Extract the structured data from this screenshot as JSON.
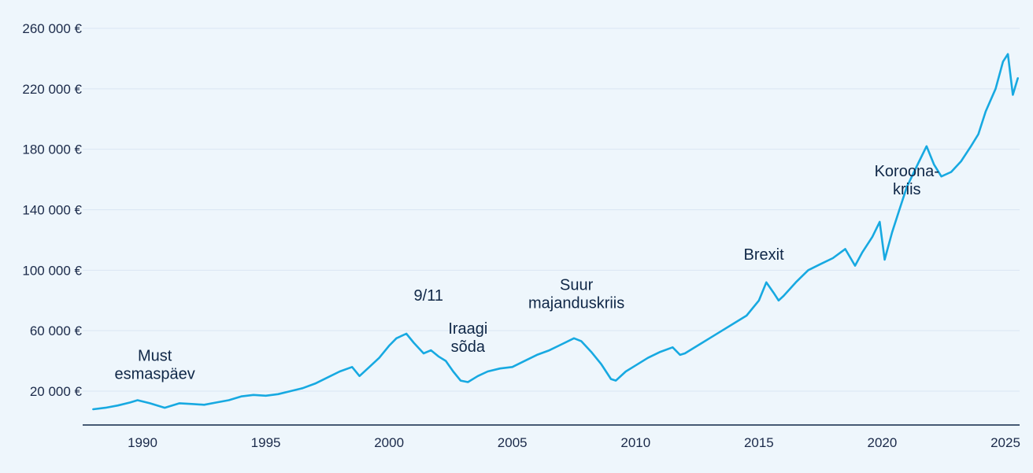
{
  "chart_data": {
    "type": "line",
    "title": "",
    "xlabel": "",
    "ylabel": "",
    "xlim": [
      1988.0,
      2025.75
    ],
    "ylim": [
      0,
      260000
    ],
    "y_ticks": [
      20000,
      60000,
      100000,
      140000,
      180000,
      220000,
      260000
    ],
    "y_tick_labels": [
      "20 000 €",
      "60 000 €",
      "100 000 €",
      "140 000 €",
      "180 000 €",
      "220 000 €",
      "260 000 €"
    ],
    "x_ticks": [
      1990,
      1995,
      2000,
      2005,
      2010,
      2015,
      2020,
      2025
    ],
    "x_tick_labels": [
      "1990",
      "1995",
      "2000",
      "2005",
      "2010",
      "2015",
      "2020",
      "2025"
    ],
    "grid": true,
    "legend": "none",
    "colors": {
      "line": "#17a9e1",
      "text": "#0f2747",
      "background": "#eef6fc",
      "grid": "#d9e6f3"
    },
    "series": [
      {
        "points": [
          [
            1988.0,
            8000
          ],
          [
            1988.5,
            9000
          ],
          [
            1989.0,
            10500
          ],
          [
            1989.5,
            12500
          ],
          [
            1989.8,
            14000
          ],
          [
            1990.3,
            12000
          ],
          [
            1990.6,
            10500
          ],
          [
            1990.9,
            9000
          ],
          [
            1991.2,
            10500
          ],
          [
            1991.5,
            12000
          ],
          [
            1992.0,
            11500
          ],
          [
            1992.5,
            11000
          ],
          [
            1993.0,
            12500
          ],
          [
            1993.5,
            14000
          ],
          [
            1994.0,
            16500
          ],
          [
            1994.5,
            17500
          ],
          [
            1995.0,
            17000
          ],
          [
            1995.5,
            18000
          ],
          [
            1996.0,
            20000
          ],
          [
            1996.5,
            22000
          ],
          [
            1997.0,
            25000
          ],
          [
            1997.5,
            29000
          ],
          [
            1998.0,
            33000
          ],
          [
            1998.5,
            36000
          ],
          [
            1998.8,
            30000
          ],
          [
            1999.2,
            36000
          ],
          [
            1999.6,
            42000
          ],
          [
            2000.0,
            50000
          ],
          [
            2000.3,
            55000
          ],
          [
            2000.7,
            58000
          ],
          [
            2001.0,
            52000
          ],
          [
            2001.4,
            45000
          ],
          [
            2001.7,
            47000
          ],
          [
            2002.0,
            43000
          ],
          [
            2002.3,
            40000
          ],
          [
            2002.6,
            33000
          ],
          [
            2002.9,
            27000
          ],
          [
            2003.2,
            26000
          ],
          [
            2003.6,
            30000
          ],
          [
            2004.0,
            33000
          ],
          [
            2004.5,
            35000
          ],
          [
            2005.0,
            36000
          ],
          [
            2005.5,
            40000
          ],
          [
            2006.0,
            44000
          ],
          [
            2006.5,
            47000
          ],
          [
            2007.0,
            51000
          ],
          [
            2007.5,
            55000
          ],
          [
            2007.8,
            53000
          ],
          [
            2008.2,
            46000
          ],
          [
            2008.6,
            38000
          ],
          [
            2009.0,
            28000
          ],
          [
            2009.2,
            27000
          ],
          [
            2009.6,
            33000
          ],
          [
            2010.0,
            37000
          ],
          [
            2010.5,
            42000
          ],
          [
            2011.0,
            46000
          ],
          [
            2011.5,
            49000
          ],
          [
            2011.8,
            44000
          ],
          [
            2012.0,
            45000
          ],
          [
            2012.5,
            50000
          ],
          [
            2013.0,
            55000
          ],
          [
            2013.5,
            60000
          ],
          [
            2014.0,
            65000
          ],
          [
            2014.5,
            70000
          ],
          [
            2015.0,
            80000
          ],
          [
            2015.3,
            92000
          ],
          [
            2015.6,
            85000
          ],
          [
            2015.8,
            80000
          ],
          [
            2016.0,
            83000
          ],
          [
            2016.5,
            92000
          ],
          [
            2017.0,
            100000
          ],
          [
            2017.5,
            104000
          ],
          [
            2018.0,
            108000
          ],
          [
            2018.5,
            114000
          ],
          [
            2018.9,
            103000
          ],
          [
            2019.2,
            112000
          ],
          [
            2019.6,
            122000
          ],
          [
            2019.9,
            132000
          ],
          [
            2020.1,
            107000
          ],
          [
            2020.4,
            125000
          ],
          [
            2020.7,
            140000
          ],
          [
            2021.0,
            155000
          ],
          [
            2021.5,
            172000
          ],
          [
            2021.8,
            182000
          ],
          [
            2022.1,
            170000
          ],
          [
            2022.4,
            162000
          ],
          [
            2022.8,
            165000
          ],
          [
            2023.2,
            172000
          ],
          [
            2023.6,
            182000
          ],
          [
            2023.9,
            190000
          ],
          [
            2024.2,
            205000
          ],
          [
            2024.6,
            220000
          ],
          [
            2024.9,
            238000
          ],
          [
            2025.1,
            243000
          ],
          [
            2025.3,
            216000
          ],
          [
            2025.5,
            227000
          ]
        ]
      }
    ],
    "annotations": [
      {
        "lines": [
          "Must",
          "esmaspäev"
        ],
        "x": 1990.5,
        "y": 40000
      },
      {
        "lines": [
          "9/11"
        ],
        "x": 2001.6,
        "y": 80000
      },
      {
        "lines": [
          "Iraagi",
          "sõda"
        ],
        "x": 2003.2,
        "y": 58000
      },
      {
        "lines": [
          "Suur",
          "majanduskriis"
        ],
        "x": 2007.6,
        "y": 87000
      },
      {
        "lines": [
          "Brexit"
        ],
        "x": 2015.2,
        "y": 107000
      },
      {
        "lines": [
          "Koroona-",
          "kriis"
        ],
        "x": 2021.0,
        "y": 162000
      }
    ]
  }
}
